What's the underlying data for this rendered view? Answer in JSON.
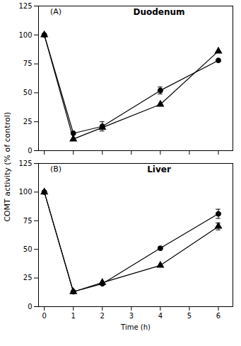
{
  "chart_data": [
    {
      "type": "line",
      "title": "Duodenum",
      "annotations": [
        "(A)"
      ],
      "ylabel": "COMT activity (% of control)",
      "x": [
        0,
        1,
        2,
        4,
        6
      ],
      "series": [
        {
          "marker": "circle",
          "line_style": "solid",
          "color": "#000000",
          "values": [
            100,
            15,
            21,
            52,
            78
          ],
          "errors": [
            0,
            0,
            4,
            3,
            0
          ]
        },
        {
          "marker": "triangle",
          "line_style": "solid",
          "color": "#000000",
          "values": [
            100,
            10,
            20,
            40,
            86
          ],
          "errors": [
            0,
            0,
            0,
            0,
            0
          ]
        }
      ],
      "xlim": [
        -0.2,
        6.5
      ],
      "xticks": [
        0,
        1,
        2,
        3,
        4,
        5,
        6
      ],
      "ylim": [
        0,
        125
      ],
      "yticks": [
        0,
        25,
        50,
        75,
        100,
        125
      ],
      "tick_labels": "y",
      "grid": false
    },
    {
      "type": "line",
      "title": "Liver",
      "annotations": [
        "(B)"
      ],
      "xlabel": "Time (h)",
      "x": [
        0,
        1,
        2,
        4,
        6
      ],
      "series": [
        {
          "marker": "circle",
          "line_style": "solid",
          "color": "#000000",
          "values": [
            100,
            13,
            20,
            51,
            81
          ],
          "errors": [
            0,
            0,
            0,
            0,
            4
          ]
        },
        {
          "marker": "triangle",
          "line_style": "solid",
          "color": "#000000",
          "values": [
            100,
            13,
            21,
            36,
            70
          ],
          "errors": [
            0,
            0,
            0,
            0,
            3
          ]
        }
      ],
      "xlim": [
        -0.2,
        6.5
      ],
      "xticks": [
        0,
        1,
        2,
        3,
        4,
        5,
        6
      ],
      "ylim": [
        0,
        125
      ],
      "yticks": [
        0,
        25,
        50,
        75,
        100,
        125
      ],
      "grid": false
    }
  ]
}
